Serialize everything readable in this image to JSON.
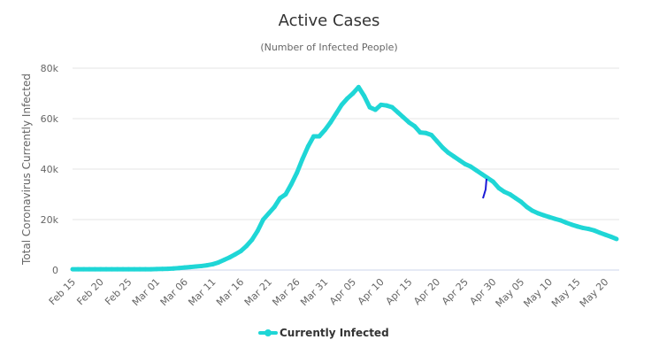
{
  "chart_data": {
    "type": "line",
    "title": "Active Cases",
    "subtitle": "(Number of Infected People)",
    "ylabel": "Total Coronavirus Currently Infected",
    "xlabel": "",
    "ylim": [
      0,
      80000
    ],
    "yticks": [
      0,
      20000,
      40000,
      60000,
      80000
    ],
    "ytick_labels": [
      "0",
      "20k",
      "40k",
      "60k",
      "80k"
    ],
    "grid": true,
    "legend_position": "bottom",
    "series_color": "#1fd6d6",
    "annotation_color": "#1a1ad6",
    "xtick_labels": [
      "Feb 15",
      "Feb 20",
      "Feb 25",
      "Mar 01",
      "Mar 06",
      "Mar 11",
      "Mar 16",
      "Mar 21",
      "Mar 26",
      "Mar 31",
      "Apr 05",
      "Apr 10",
      "Apr 15",
      "Apr 20",
      "Apr 25",
      "Apr 30",
      "May 05",
      "May 10",
      "May 15",
      "May 20"
    ],
    "x": [
      "Feb 15",
      "Feb 16",
      "Feb 17",
      "Feb 18",
      "Feb 19",
      "Feb 20",
      "Feb 21",
      "Feb 22",
      "Feb 23",
      "Feb 24",
      "Feb 25",
      "Feb 26",
      "Feb 27",
      "Feb 28",
      "Feb 29",
      "Mar 01",
      "Mar 02",
      "Mar 03",
      "Mar 04",
      "Mar 05",
      "Mar 06",
      "Mar 07",
      "Mar 08",
      "Mar 09",
      "Mar 10",
      "Mar 11",
      "Mar 12",
      "Mar 13",
      "Mar 14",
      "Mar 15",
      "Mar 16",
      "Mar 17",
      "Mar 18",
      "Mar 19",
      "Mar 20",
      "Mar 21",
      "Mar 22",
      "Mar 23",
      "Mar 24",
      "Mar 25",
      "Mar 26",
      "Mar 27",
      "Mar 28",
      "Mar 29",
      "Mar 30",
      "Mar 31",
      "Apr 01",
      "Apr 02",
      "Apr 03",
      "Apr 04",
      "Apr 05",
      "Apr 06",
      "Apr 07",
      "Apr 08",
      "Apr 09",
      "Apr 10",
      "Apr 11",
      "Apr 12",
      "Apr 13",
      "Apr 14",
      "Apr 15",
      "Apr 16",
      "Apr 17",
      "Apr 18",
      "Apr 19",
      "Apr 20",
      "Apr 21",
      "Apr 22",
      "Apr 23",
      "Apr 24",
      "Apr 25",
      "Apr 26",
      "Apr 27",
      "Apr 28",
      "Apr 29",
      "Apr 30",
      "May 01",
      "May 02",
      "May 03",
      "May 04",
      "May 05",
      "May 06",
      "May 07",
      "May 08",
      "May 09",
      "May 10",
      "May 11",
      "May 12",
      "May 13",
      "May 14",
      "May 15",
      "May 16",
      "May 17",
      "May 18",
      "May 19",
      "May 20",
      "May 21",
      "May 22"
    ],
    "series": [
      {
        "name": "Currently Infected",
        "values": [
          300,
          300,
          300,
          300,
          300,
          300,
          300,
          300,
          300,
          300,
          300,
          300,
          300,
          300,
          300,
          400,
          450,
          500,
          600,
          800,
          1000,
          1200,
          1400,
          1600,
          1900,
          2300,
          3000,
          4000,
          5000,
          6200,
          7500,
          9500,
          12000,
          15500,
          20000,
          22500,
          25000,
          28500,
          30000,
          34000,
          38500,
          44000,
          49000,
          53000,
          53000,
          55500,
          58500,
          62000,
          65500,
          68000,
          70000,
          72500,
          69000,
          64500,
          63500,
          65500,
          65200,
          64500,
          62500,
          60500,
          58500,
          57000,
          54500,
          54300,
          53500,
          51000,
          48500,
          46500,
          45000,
          43500,
          42000,
          41000,
          39500,
          38000,
          36500,
          35000,
          32500,
          31000,
          30000,
          28500,
          27000,
          25000,
          23500,
          22500,
          21700,
          21000,
          20300,
          19700,
          18800,
          18000,
          17300,
          16700,
          16300,
          15700,
          14800,
          14000,
          13200,
          12300
        ]
      }
    ]
  }
}
